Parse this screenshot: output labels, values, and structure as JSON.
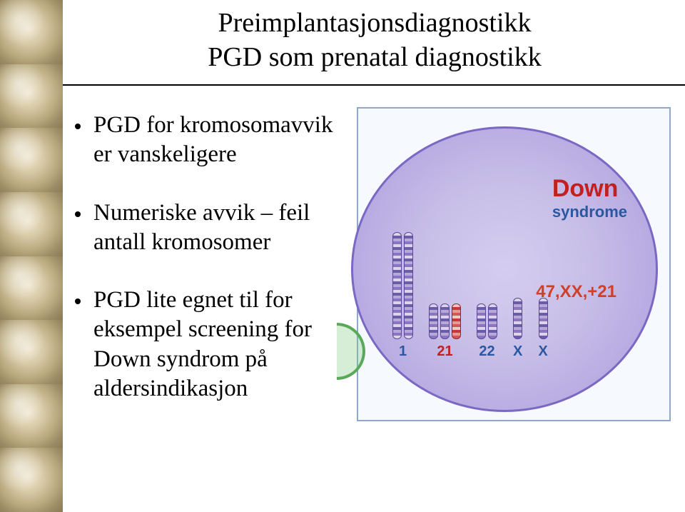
{
  "title": {
    "line1": "Preimplantasjonsdiagnostikk",
    "line2": "PGD som prenatal diagnostikk"
  },
  "bullets": [
    {
      "text": "PGD for kromosomavvik er vanskeligere"
    },
    {
      "text": "Numeriske avvik – feil antall kromosomer"
    },
    {
      "text": "PGD lite egnet til for eksempel screening for Down syndrom på aldersindikasjon"
    }
  ],
  "diagram": {
    "label_main": "Down",
    "label_sub": "syndrome",
    "label_main_color": "#c22020",
    "label_sub_color": "#2a58a0",
    "karyotype": "47,XX,+21",
    "karyotype_color": "#d04028",
    "circle_fill": "#c8bfe8",
    "circle_border": "#7a68c4",
    "frame_border": "#8fa8c8",
    "frame_bg": "#f6f9fe",
    "chromosome_groups": [
      {
        "label": "1",
        "label_color": "#2a58a0",
        "count": 2,
        "height": "tall",
        "red": false
      },
      {
        "label": "21",
        "label_color": "#c22020",
        "count": 3,
        "height": "short",
        "red": true
      },
      {
        "label": "22",
        "label_color": "#2a58a0",
        "count": 2,
        "height": "short",
        "red": false
      },
      {
        "label": "X",
        "label_color": "#2a58a0",
        "count": 1,
        "height": "med",
        "red": false
      },
      {
        "label": "X",
        "label_color": "#2a58a0",
        "count": 1,
        "height": "med",
        "red": false
      }
    ]
  },
  "sidebar": {
    "cell_count": 8
  }
}
